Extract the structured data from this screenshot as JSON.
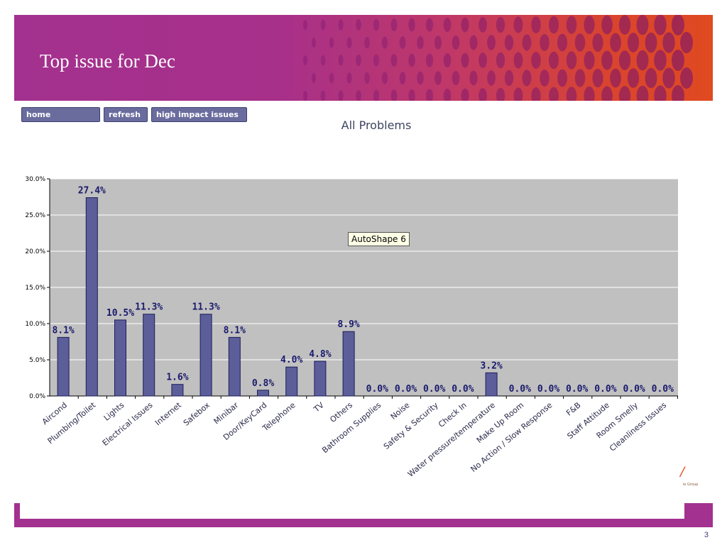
{
  "slide": {
    "title": "Top issue for Dec",
    "page_number": "3",
    "logo_text": "le Group"
  },
  "nav": {
    "home": "home",
    "refresh": "refresh",
    "high_impact": "high impact issues"
  },
  "tooltip": "AutoShape 6",
  "colors": {
    "header_start": "#a3318f",
    "header_end": "#e04a20",
    "bar": "#5b5e99",
    "plot_bg": "#c0c0c0",
    "label": "#1a1a6e"
  },
  "chart_data": {
    "type": "bar",
    "title": "All Problems",
    "categories": [
      "Aircond",
      "Plumbing/Toilet",
      "Lights",
      "Electrical Issues",
      "Internet",
      "Safebox",
      "Minibar",
      "Door/KeyCard",
      "Telephone",
      "TV",
      "Others",
      "Bathroom Supplies",
      "Noise",
      "Safety & Security",
      "Check In",
      "Water pressure/temperature",
      "Make Up Room",
      "No Action / Slow Response",
      "F&B",
      "Staff Attitude",
      "Room Smelly",
      "Cleanliness Issues"
    ],
    "values": [
      8.1,
      27.4,
      10.5,
      11.3,
      1.6,
      11.3,
      8.1,
      0.8,
      4.0,
      4.8,
      8.9,
      0.0,
      0.0,
      0.0,
      0.0,
      3.2,
      0.0,
      0.0,
      0.0,
      0.0,
      0.0,
      0.0
    ],
    "data_labels": [
      "8.1%",
      "27.4%",
      "10.5%",
      "11.3%",
      "1.6%",
      "11.3%",
      "8.1%",
      "0.8%",
      "4.0%",
      "4.8%",
      "8.9%",
      "0.0%",
      "0.0%",
      "0.0%",
      "0.0%",
      "3.2%",
      "0.0%",
      "0.0%",
      "0.0%",
      "0.0%",
      "0.0%",
      "0.0%"
    ],
    "y_ticks": [
      "0.0%",
      "5.0%",
      "10.0%",
      "15.0%",
      "20.0%",
      "25.0%",
      "30.0%"
    ],
    "ylim": [
      0,
      30
    ],
    "xlabel": "",
    "ylabel": "",
    "grid": true
  }
}
